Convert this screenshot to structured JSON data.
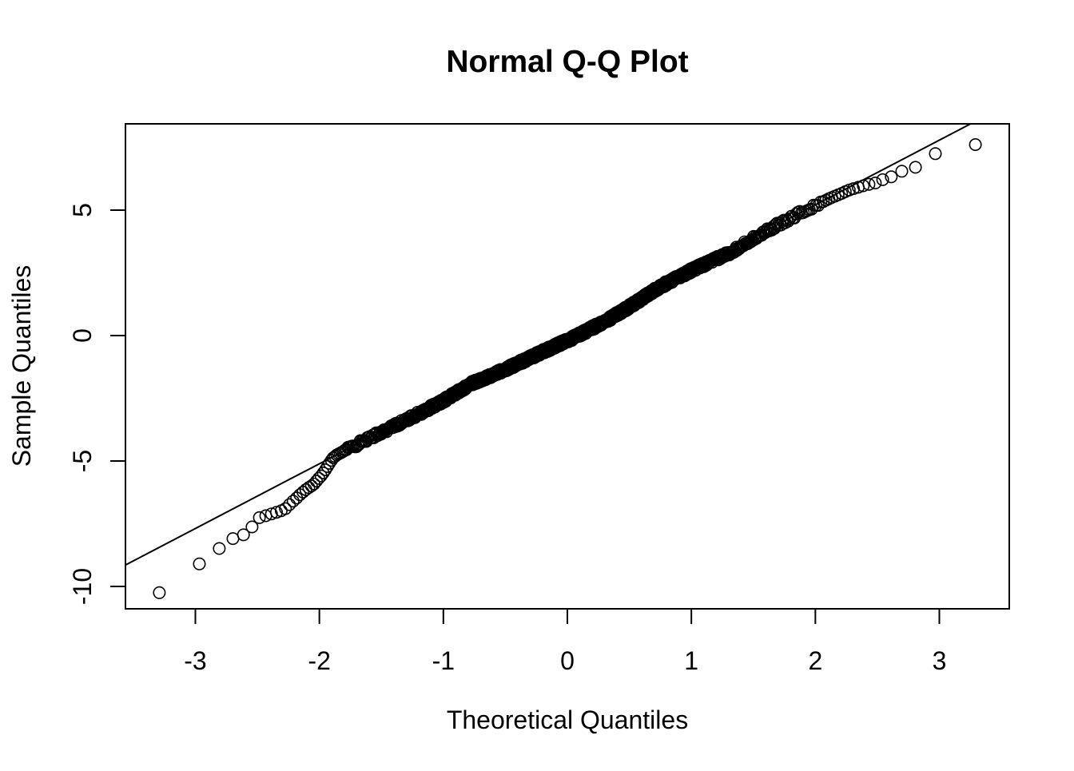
{
  "title": "Normal Q-Q Plot",
  "x_axis": {
    "label": "Theoretical Quantiles",
    "ticks": [
      -3,
      -2,
      -1,
      0,
      1,
      2,
      3
    ],
    "range": [
      -3.56,
      3.56
    ]
  },
  "y_axis": {
    "label": "Sample Quantiles",
    "ticks": [
      -10,
      -5,
      0,
      5
    ],
    "range": [
      -10.89,
      8.44
    ]
  },
  "chart_data": {
    "type": "scatter",
    "title": "Normal Q-Q Plot",
    "xlabel": "Theoretical Quantiles",
    "ylabel": "Sample Quantiles",
    "xlim": [
      -3.56,
      3.56
    ],
    "ylim": [
      -10.89,
      8.44
    ],
    "grid": false,
    "legend": "none",
    "marker": "open-circle",
    "marker_color": "#000000",
    "background_color": "#ffffff",
    "n_points": 1000,
    "reference_line": {
      "slope": 2.58,
      "intercept": 0.05,
      "color": "#000000"
    },
    "quantile_curve": [
      [
        -3.29,
        -10.25
      ],
      [
        -2.97,
        -9.11
      ],
      [
        -2.81,
        -8.5
      ],
      [
        -2.71,
        -8.12
      ],
      [
        -2.63,
        -7.96
      ],
      [
        -2.57,
        -7.9
      ],
      [
        -2.51,
        -7.3
      ],
      [
        -2.46,
        -7.22
      ],
      [
        -2.41,
        -7.15
      ],
      [
        -2.37,
        -7.08
      ],
      [
        -2.33,
        -7.02
      ],
      [
        -2.28,
        -6.93
      ],
      [
        -2.25,
        -6.78
      ],
      [
        -2.21,
        -6.59
      ],
      [
        -2.18,
        -6.46
      ],
      [
        -2.15,
        -6.31
      ],
      [
        -2.11,
        -6.15
      ],
      [
        -2.08,
        -6.04
      ],
      [
        -2.05,
        -5.95
      ],
      [
        -2.01,
        -5.72
      ],
      [
        -1.98,
        -5.56
      ],
      [
        -1.95,
        -5.34
      ],
      [
        -1.93,
        -5.18
      ],
      [
        -1.91,
        -5.02
      ],
      [
        -1.89,
        -4.88
      ],
      [
        -1.86,
        -4.76
      ],
      [
        -1.8,
        -4.6
      ],
      [
        -1.5,
        -3.85
      ],
      [
        -1.2,
        -3.12
      ],
      [
        -1.0,
        -2.6
      ],
      [
        -0.77,
        -1.9
      ],
      [
        -0.5,
        -1.35
      ],
      [
        -0.18,
        -0.6
      ],
      [
        0.0,
        -0.2
      ],
      [
        0.3,
        0.55
      ],
      [
        0.55,
        1.3
      ],
      [
        0.73,
        1.9
      ],
      [
        1.0,
        2.6
      ],
      [
        1.31,
        3.3
      ],
      [
        1.57,
        4.08
      ],
      [
        1.75,
        4.55
      ],
      [
        1.9,
        4.95
      ],
      [
        2.0,
        5.18
      ],
      [
        2.12,
        5.48
      ],
      [
        2.2,
        5.64
      ],
      [
        2.27,
        5.8
      ],
      [
        2.33,
        5.89
      ],
      [
        2.4,
        5.99
      ],
      [
        2.45,
        6.05
      ],
      [
        2.51,
        6.11
      ],
      [
        2.56,
        6.27
      ],
      [
        2.63,
        6.35
      ],
      [
        2.72,
        6.62
      ],
      [
        2.82,
        6.72
      ],
      [
        2.97,
        7.26
      ],
      [
        3.29,
        7.61
      ]
    ],
    "jitter": {
      "range": [
        -1.8,
        2.05
      ],
      "amplitude": 0.085,
      "seed": 42
    }
  }
}
